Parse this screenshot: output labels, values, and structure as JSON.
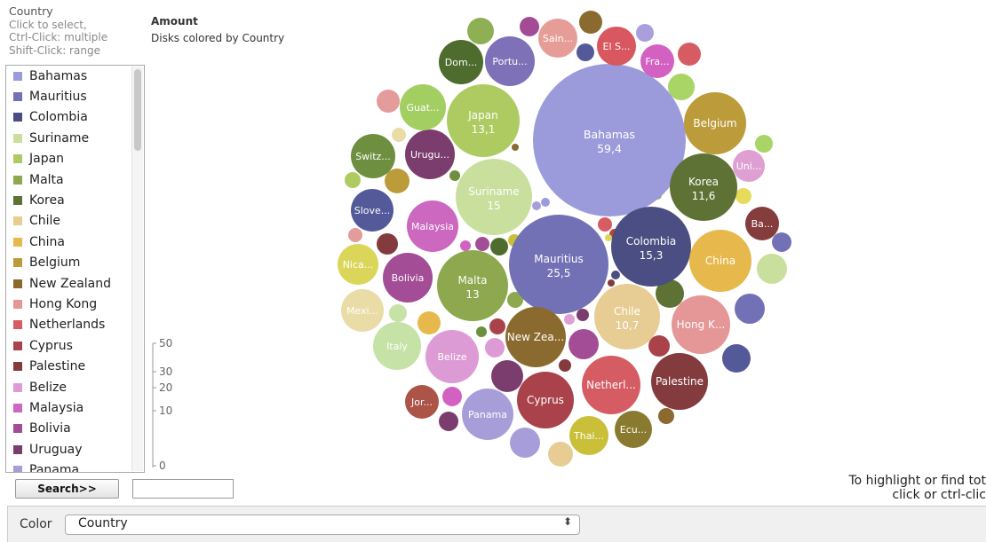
{
  "sidebar": {
    "title": "Country",
    "instructions": [
      "Click to select,",
      "Ctrl-Click: multiple",
      "Shift-Click: range"
    ],
    "items": [
      {
        "label": "Bahamas",
        "color": "#9b9bdb"
      },
      {
        "label": "Mauritius",
        "color": "#7371b5"
      },
      {
        "label": "Colombia",
        "color": "#4a4e82"
      },
      {
        "label": "Suriname",
        "color": "#c9df9d"
      },
      {
        "label": "Japan",
        "color": "#aecb62"
      },
      {
        "label": "Malta",
        "color": "#8da84e"
      },
      {
        "label": "Korea",
        "color": "#5f7235"
      },
      {
        "label": "Chile",
        "color": "#e7cd94"
      },
      {
        "label": "China",
        "color": "#e7b94c"
      },
      {
        "label": "Belgium",
        "color": "#bc9b3b"
      },
      {
        "label": "New Zealand",
        "color": "#8b6a2f"
      },
      {
        "label": "Hong Kong",
        "color": "#e59797"
      },
      {
        "label": "Netherlands",
        "color": "#d65c63"
      },
      {
        "label": "Cyprus",
        "color": "#a9424a"
      },
      {
        "label": "Palestine",
        "color": "#833b3e"
      },
      {
        "label": "Belize",
        "color": "#dd9bd6"
      },
      {
        "label": "Malaysia",
        "color": "#cc68bf"
      },
      {
        "label": "Bolivia",
        "color": "#a24d95"
      },
      {
        "label": "Uruguay",
        "color": "#7a3d6d"
      },
      {
        "label": "Panama",
        "color": "#a79ed9"
      }
    ]
  },
  "size_legend": {
    "title": "Amount",
    "subtitle": "Disks colored by Country",
    "ticks": [
      "50",
      "30",
      "20",
      "10",
      "0"
    ]
  },
  "search": {
    "button_label": "Search>>",
    "input_value": ""
  },
  "hint": {
    "line1": "To highlight or find tot",
    "line2": "click or ctrl-clic"
  },
  "bottom_bar": {
    "color_label": "Color",
    "selected_value": "Country",
    "arrow_glyph": "⬍"
  },
  "chart_data": {
    "type": "bubble",
    "size_variable": "Amount",
    "color_variable": "Country",
    "labeled_bubbles": [
      {
        "label": "Bahamas",
        "value": "59,4",
        "color": "#9b9bdb"
      },
      {
        "label": "Mauritius",
        "value": "25,5",
        "color": "#7371b5"
      },
      {
        "label": "Colombia",
        "value": "15,3",
        "color": "#4a4e82"
      },
      {
        "label": "Suriname",
        "value": "15",
        "color": "#c9df9d"
      },
      {
        "label": "Japan",
        "value": "13,1",
        "color": "#aecb62"
      },
      {
        "label": "Malta",
        "value": "13",
        "color": "#8da84e"
      },
      {
        "label": "Korea",
        "value": "11,6",
        "color": "#5f7235"
      },
      {
        "label": "Chile",
        "value": "10,7",
        "color": "#e7cd94"
      },
      {
        "label": "China",
        "color": "#e7b94c"
      },
      {
        "label": "Belgium",
        "color": "#bc9b3b"
      },
      {
        "label": "New Zea...",
        "color": "#8b6a2f"
      },
      {
        "label": "Hong K...",
        "color": "#e59797"
      },
      {
        "label": "Netherl...",
        "color": "#d65c63"
      },
      {
        "label": "Cyprus",
        "color": "#a9424a"
      },
      {
        "label": "Palestine",
        "color": "#833b3e"
      },
      {
        "label": "Belize",
        "color": "#dd9bd6"
      },
      {
        "label": "Malaysia",
        "color": "#cc68bf"
      },
      {
        "label": "Bolivia",
        "color": "#a24d95"
      },
      {
        "label": "Urugu...",
        "color": "#7a3d6d"
      },
      {
        "label": "Panama",
        "color": "#a79ed9"
      },
      {
        "label": "Italy",
        "color": "#c6e2a7"
      },
      {
        "label": "Mexi...",
        "color": "#e9dca6"
      },
      {
        "label": "Nica...",
        "color": "#dbd65a"
      },
      {
        "label": "Slove...",
        "color": "#545a99"
      },
      {
        "label": "Switz...",
        "color": "#6d8f3f"
      },
      {
        "label": "Guat...",
        "color": "#a3cf62"
      },
      {
        "label": "Dom...",
        "color": "#4e6c2e"
      },
      {
        "label": "Portu...",
        "color": "#7e71b8"
      },
      {
        "label": "Sain...",
        "color": "#e69d98"
      },
      {
        "label": "El S...",
        "color": "#d9575e"
      },
      {
        "label": "Fra...",
        "color": "#d261c1"
      },
      {
        "label": "Uni...",
        "color": "#dea0d2"
      },
      {
        "label": "Ba...",
        "color": "#853c3d"
      },
      {
        "label": "Jor...",
        "color": "#ad5448"
      },
      {
        "label": "Thai...",
        "color": "#c9bf39"
      },
      {
        "label": "Ecu...",
        "color": "#8a7a30"
      }
    ]
  }
}
